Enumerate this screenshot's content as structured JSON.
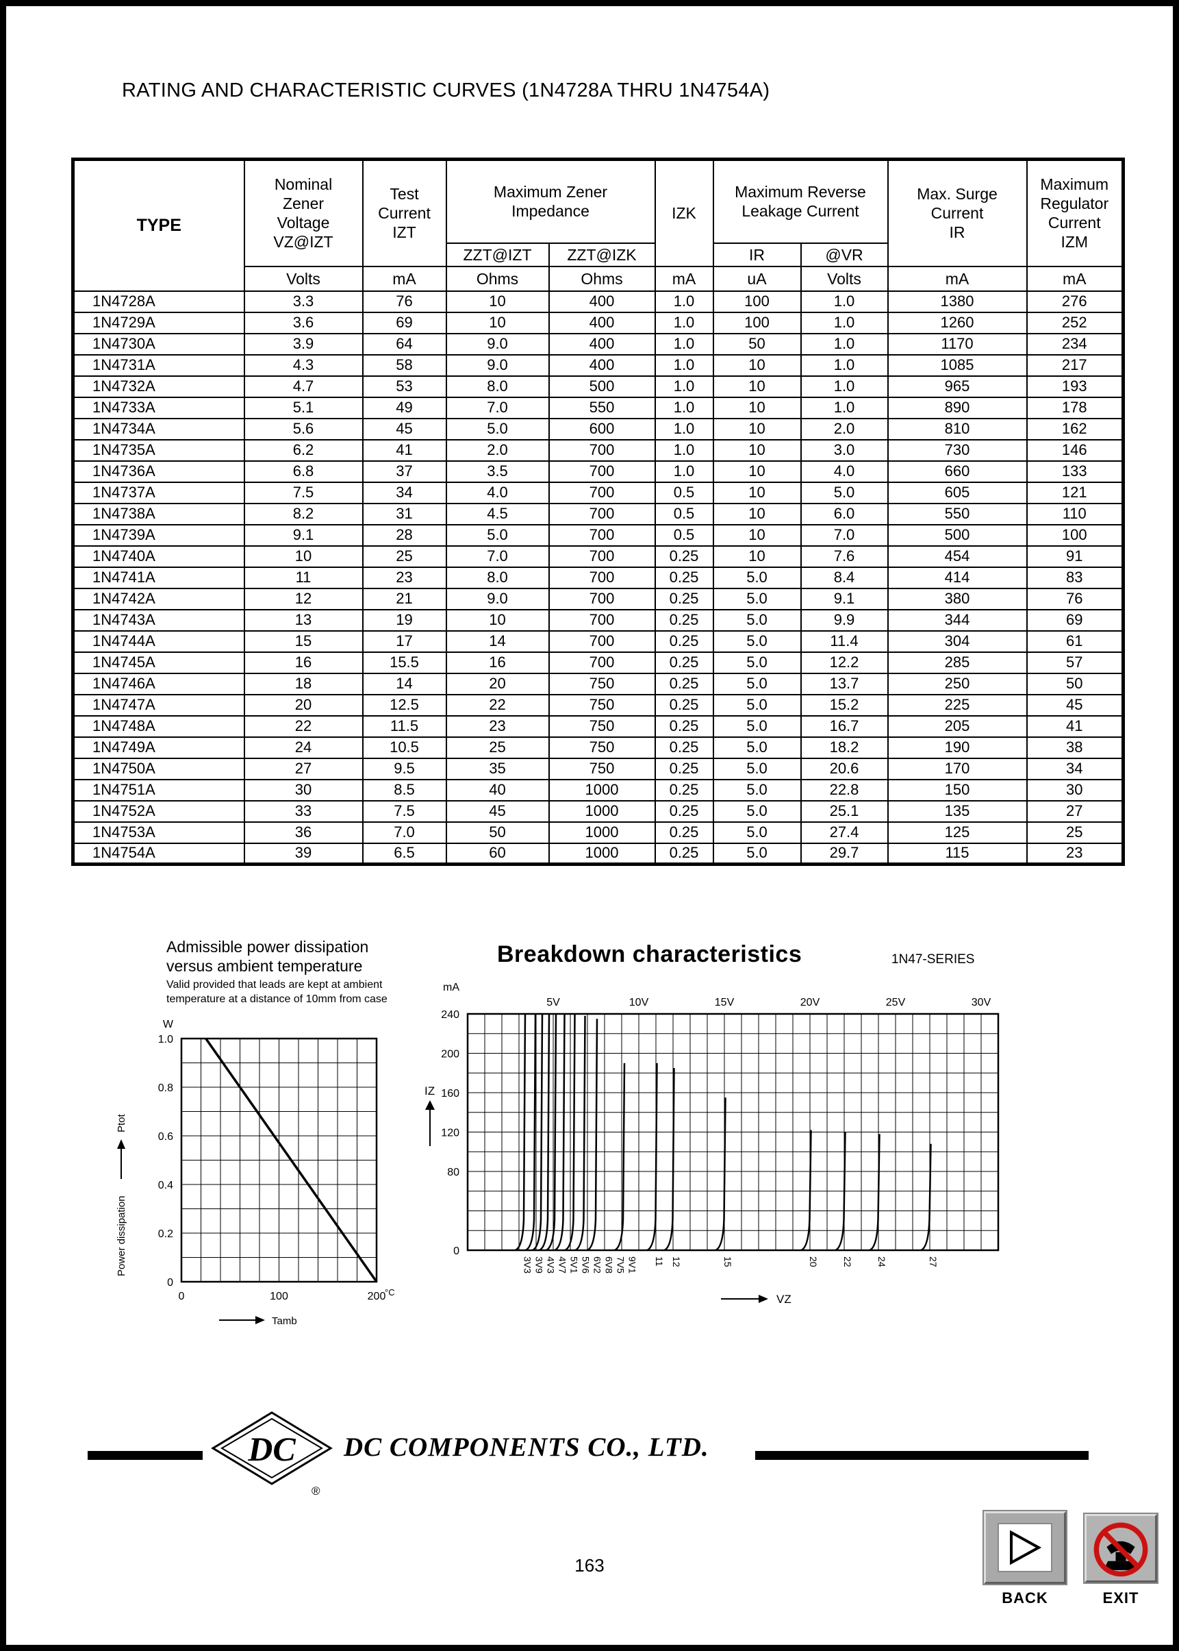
{
  "page": {
    "title": "RATING AND CHARACTERISTIC CURVES (1N4728A THRU 1N4754A)",
    "page_number": "163"
  },
  "table": {
    "headers": {
      "type": "TYPE",
      "nominal": "Nominal\nZener\nVoltage\nVZ@IZT",
      "test": "Test\nCurrent\nIZT",
      "impedance": "Maximum Zener\nImpedance",
      "zzt_izt": "ZZT@IZT",
      "zzt_izk": "ZZT@IZK",
      "izk": "IZK",
      "leakage": "Maximum Reverse\nLeakage Current",
      "ir": "IR",
      "vr": "@VR",
      "surge": "Max. Surge\nCurrent\nIR",
      "regulator": "Maximum\nRegulator\nCurrent\nIZM"
    },
    "units": [
      "Volts",
      "mA",
      "Ohms",
      "Ohms",
      "mA",
      "uA",
      "Volts",
      "mA",
      "mA"
    ],
    "rows": [
      [
        "1N4728A",
        "3.3",
        "76",
        "10",
        "400",
        "1.0",
        "100",
        "1.0",
        "1380",
        "276"
      ],
      [
        "1N4729A",
        "3.6",
        "69",
        "10",
        "400",
        "1.0",
        "100",
        "1.0",
        "1260",
        "252"
      ],
      [
        "1N4730A",
        "3.9",
        "64",
        "9.0",
        "400",
        "1.0",
        "50",
        "1.0",
        "1170",
        "234"
      ],
      [
        "1N4731A",
        "4.3",
        "58",
        "9.0",
        "400",
        "1.0",
        "10",
        "1.0",
        "1085",
        "217"
      ],
      [
        "1N4732A",
        "4.7",
        "53",
        "8.0",
        "500",
        "1.0",
        "10",
        "1.0",
        "965",
        "193"
      ],
      [
        "1N4733A",
        "5.1",
        "49",
        "7.0",
        "550",
        "1.0",
        "10",
        "1.0",
        "890",
        "178"
      ],
      [
        "1N4734A",
        "5.6",
        "45",
        "5.0",
        "600",
        "1.0",
        "10",
        "2.0",
        "810",
        "162"
      ],
      [
        "1N4735A",
        "6.2",
        "41",
        "2.0",
        "700",
        "1.0",
        "10",
        "3.0",
        "730",
        "146"
      ],
      [
        "1N4736A",
        "6.8",
        "37",
        "3.5",
        "700",
        "1.0",
        "10",
        "4.0",
        "660",
        "133"
      ],
      [
        "1N4737A",
        "7.5",
        "34",
        "4.0",
        "700",
        "0.5",
        "10",
        "5.0",
        "605",
        "121"
      ],
      [
        "1N4738A",
        "8.2",
        "31",
        "4.5",
        "700",
        "0.5",
        "10",
        "6.0",
        "550",
        "110"
      ],
      [
        "1N4739A",
        "9.1",
        "28",
        "5.0",
        "700",
        "0.5",
        "10",
        "7.0",
        "500",
        "100"
      ],
      [
        "1N4740A",
        "10",
        "25",
        "7.0",
        "700",
        "0.25",
        "10",
        "7.6",
        "454",
        "91"
      ],
      [
        "1N4741A",
        "11",
        "23",
        "8.0",
        "700",
        "0.25",
        "5.0",
        "8.4",
        "414",
        "83"
      ],
      [
        "1N4742A",
        "12",
        "21",
        "9.0",
        "700",
        "0.25",
        "5.0",
        "9.1",
        "380",
        "76"
      ],
      [
        "1N4743A",
        "13",
        "19",
        "10",
        "700",
        "0.25",
        "5.0",
        "9.9",
        "344",
        "69"
      ],
      [
        "1N4744A",
        "15",
        "17",
        "14",
        "700",
        "0.25",
        "5.0",
        "11.4",
        "304",
        "61"
      ],
      [
        "1N4745A",
        "16",
        "15.5",
        "16",
        "700",
        "0.25",
        "5.0",
        "12.2",
        "285",
        "57"
      ],
      [
        "1N4746A",
        "18",
        "14",
        "20",
        "750",
        "0.25",
        "5.0",
        "13.7",
        "250",
        "50"
      ],
      [
        "1N4747A",
        "20",
        "12.5",
        "22",
        "750",
        "0.25",
        "5.0",
        "15.2",
        "225",
        "45"
      ],
      [
        "1N4748A",
        "22",
        "11.5",
        "23",
        "750",
        "0.25",
        "5.0",
        "16.7",
        "205",
        "41"
      ],
      [
        "1N4749A",
        "24",
        "10.5",
        "25",
        "750",
        "0.25",
        "5.0",
        "18.2",
        "190",
        "38"
      ],
      [
        "1N4750A",
        "27",
        "9.5",
        "35",
        "750",
        "0.25",
        "5.0",
        "20.6",
        "170",
        "34"
      ],
      [
        "1N4751A",
        "30",
        "8.5",
        "40",
        "1000",
        "0.25",
        "5.0",
        "22.8",
        "150",
        "30"
      ],
      [
        "1N4752A",
        "33",
        "7.5",
        "45",
        "1000",
        "0.25",
        "5.0",
        "25.1",
        "135",
        "27"
      ],
      [
        "1N4753A",
        "36",
        "7.0",
        "50",
        "1000",
        "0.25",
        "5.0",
        "27.4",
        "125",
        "25"
      ],
      [
        "1N4754A",
        "39",
        "6.5",
        "60",
        "1000",
        "0.25",
        "5.0",
        "29.7",
        "115",
        "23"
      ]
    ]
  },
  "chart_data": [
    {
      "type": "line",
      "title": "Admissible power dissipation\nversus ambient temperature",
      "subtitle": "Valid provided that leads are kept at ambient\ntemperature at a distance of 10mm from case",
      "xlabel": "Tamb",
      "x_unit": "°C",
      "ylabel": "Power dissipation",
      "ylabel_arrow_to": "Ptot",
      "y_unit": "W",
      "xlim": [
        0,
        200
      ],
      "ylim": [
        0,
        1.0
      ],
      "x_divisions": 10,
      "y_divisions": 10,
      "x_ticks": [
        "0",
        "100",
        "200"
      ],
      "y_ticks": [
        "0",
        "0.2",
        "0.4",
        "0.6",
        "0.8",
        "1.0"
      ],
      "grid": true,
      "line": [
        [
          25,
          1.0
        ],
        [
          200,
          0
        ]
      ]
    },
    {
      "type": "line",
      "title": "Breakdown characteristics",
      "series_label": "1N47-SERIES",
      "xlabel": "VZ",
      "ylabel": "IZ",
      "y_unit": "mA",
      "xlim": [
        0,
        31
      ],
      "ylim": [
        0,
        240
      ],
      "x_grid_step": 1,
      "y_grid_step": 20,
      "top_ticks": [
        "5V",
        "10V",
        "15V",
        "20V",
        "25V",
        "30V"
      ],
      "top_tick_values": [
        5,
        10,
        15,
        20,
        25,
        30
      ],
      "y_ticks": [
        0,
        80,
        120,
        160,
        200,
        240
      ],
      "grid": true,
      "curves": [
        {
          "label": "3V3",
          "vz": 3.3,
          "peak": 240
        },
        {
          "label": "3V9",
          "vz": 3.9,
          "peak": 240
        },
        {
          "label": "4V3",
          "vz": 4.3,
          "peak": 240
        },
        {
          "label": "4V7",
          "vz": 4.7,
          "peak": 240
        },
        {
          "label": "5V1",
          "vz": 5.1,
          "peak": 240
        },
        {
          "label": "5V6",
          "vz": 5.6,
          "peak": 240
        },
        {
          "label": "6V2",
          "vz": 6.2,
          "peak": 240
        },
        {
          "label": "6V8",
          "vz": 6.8,
          "peak": 238
        },
        {
          "label": "7V5",
          "vz": 7.5,
          "peak": 235
        },
        {
          "label": "9V1",
          "vz": 9.1,
          "peak": 190
        },
        {
          "label": "11",
          "vz": 11,
          "peak": 190
        },
        {
          "label": "12",
          "vz": 12,
          "peak": 185
        },
        {
          "label": "15",
          "vz": 15,
          "peak": 155
        },
        {
          "label": "20",
          "vz": 20,
          "peak": 122
        },
        {
          "label": "22",
          "vz": 22,
          "peak": 120
        },
        {
          "label": "24",
          "vz": 24,
          "peak": 118
        },
        {
          "label": "27",
          "vz": 27,
          "peak": 108
        }
      ]
    }
  ],
  "footer": {
    "company": "DC COMPONENTS CO., LTD.",
    "logo_text": "DC",
    "registered": "®"
  },
  "buttons": {
    "back_label": "BACK",
    "exit_label": "EXIT"
  },
  "colors": {
    "ink": "#000000",
    "prohibition_red": "#cc1111",
    "button_gray": "#a9a9a9"
  }
}
